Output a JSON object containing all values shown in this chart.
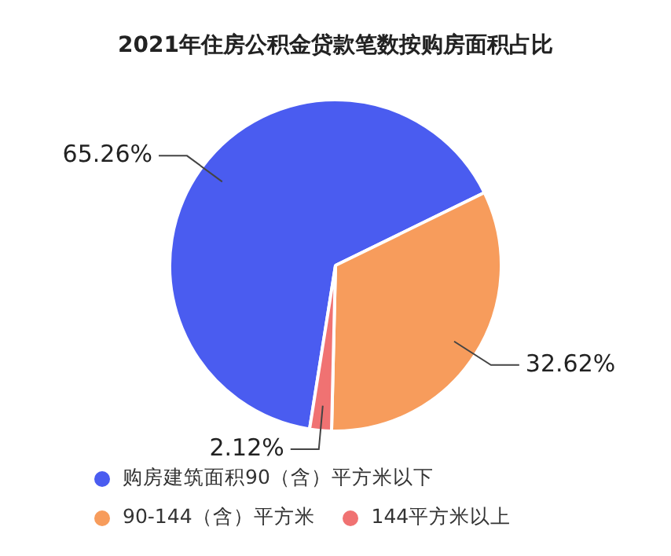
{
  "chart_data": {
    "type": "pie",
    "title": "2021年住房公积金贷款笔数按购房面积占比",
    "categories": [
      "购房建筑面积90（含）平方米以下",
      "90-144（含）平方米",
      "144平方米以上"
    ],
    "values": [
      65.26,
      32.62,
      2.12
    ],
    "colors": [
      "#4a5cf0",
      "#f79c5c",
      "#f07272"
    ],
    "value_labels": [
      "65.26%",
      "32.62%",
      "2.12%"
    ],
    "legend": "bottom"
  }
}
